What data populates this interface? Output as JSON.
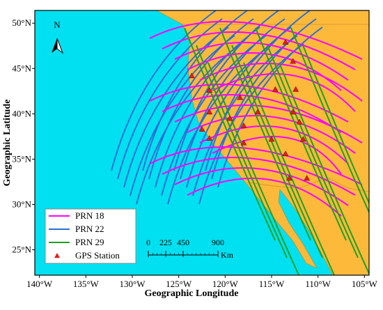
{
  "chart_data": {
    "type": "map",
    "x_label": "Geographic Longitude",
    "y_label": "Geographic Latitude",
    "xlim": [
      -140.5,
      -104.5
    ],
    "ylim": [
      22.2,
      51.4
    ],
    "xticks": [
      {
        "value": -140,
        "label": "140°W"
      },
      {
        "value": -135,
        "label": "135°W"
      },
      {
        "value": -130,
        "label": "130°W"
      },
      {
        "value": -125,
        "label": "125°W"
      },
      {
        "value": -120,
        "label": "120°W"
      },
      {
        "value": -115,
        "label": "115°W"
      },
      {
        "value": -110,
        "label": "110°W"
      },
      {
        "value": -105,
        "label": "105°W"
      }
    ],
    "yticks": [
      {
        "value": 25,
        "label": "25°N"
      },
      {
        "value": 30,
        "label": "30°N"
      },
      {
        "value": 35,
        "label": "35°N"
      },
      {
        "value": 40,
        "label": "40°N"
      },
      {
        "value": 45,
        "label": "45°N"
      },
      {
        "value": 50,
        "label": "50°N"
      }
    ],
    "north_label": "N",
    "scale_bar": {
      "ticks": [
        0,
        225,
        450,
        900
      ],
      "unit": "Km"
    },
    "series": [
      {
        "name": "PRN 18",
        "color": "#ff00ff"
      },
      {
        "name": "PRN 22",
        "color": "#2a6fd6"
      },
      {
        "name": "PRN 29",
        "color": "#1fa01f"
      },
      {
        "name": "GPS Station",
        "color": "#e0201a",
        "type": "scatter",
        "x": [
          -113.5,
          -112.7,
          -123.6,
          -121.7,
          -118.4,
          -114.6,
          -112.4,
          -121.7,
          -119.5,
          -116.5,
          -112.7,
          -112.0,
          -122.5,
          -118.0,
          -115.0,
          -111.6,
          -121.7,
          -118.0,
          -113.5,
          -113.1,
          -111.2
        ],
        "y": [
          47.9,
          45.8,
          44.2,
          42.6,
          41.8,
          42.7,
          42.7,
          40.2,
          39.5,
          40.2,
          40.2,
          39.1,
          38.3,
          38.7,
          37.2,
          37.2,
          37.3,
          36.8,
          35.6,
          32.9,
          32.9
        ]
      }
    ]
  }
}
